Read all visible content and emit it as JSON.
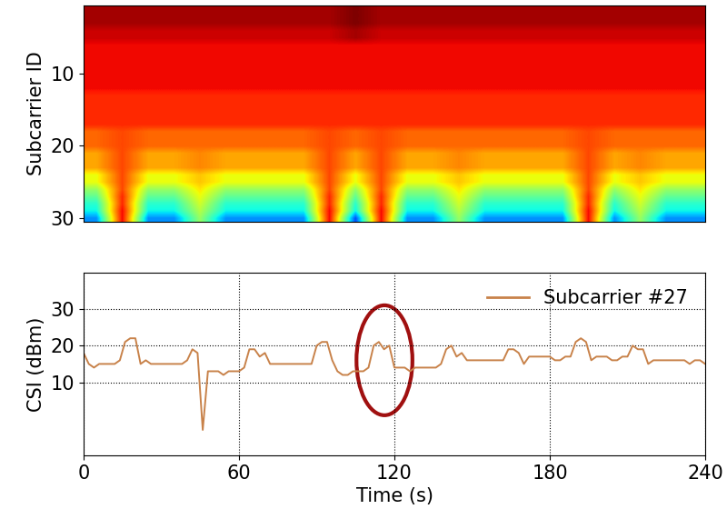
{
  "chart_data": [
    {
      "type": "heatmap",
      "y_label": "Subcarrier ID",
      "xlim": [
        0,
        240
      ],
      "ylim": [
        30.5,
        0.5
      ],
      "yticks": [
        10,
        20,
        30
      ],
      "tick_labels": "y",
      "color_range": [
        0,
        30
      ],
      "cells": [
        [
          29,
          29,
          29,
          29,
          29,
          29,
          29,
          29,
          29,
          29,
          30,
          29,
          29,
          29,
          29,
          29,
          29,
          29,
          29,
          29,
          29,
          29,
          29,
          29
        ],
        [
          29,
          29,
          29,
          29,
          29,
          29,
          29,
          29,
          29,
          29,
          30,
          29,
          29,
          29,
          29,
          29,
          29,
          29,
          29,
          29,
          29,
          29,
          29,
          29
        ],
        [
          29,
          29,
          29,
          29,
          29,
          29,
          29,
          29,
          29,
          29,
          30,
          29,
          29,
          29,
          29,
          29,
          29,
          29,
          29,
          29,
          29,
          29,
          29,
          29
        ],
        [
          28,
          28,
          28,
          28,
          28,
          28,
          28,
          28,
          28,
          28,
          29,
          28,
          28,
          28,
          28,
          28,
          28,
          28,
          28,
          28,
          28,
          28,
          28,
          28
        ],
        [
          28,
          28,
          28,
          28,
          28,
          28,
          28,
          28,
          28,
          28,
          29,
          28,
          28,
          28,
          28,
          28,
          28,
          28,
          28,
          28,
          28,
          28,
          28,
          28
        ],
        [
          27,
          27,
          27,
          27,
          27,
          27,
          27,
          27,
          27,
          27,
          27,
          27,
          27,
          27,
          27,
          27,
          27,
          27,
          27,
          27,
          27,
          27,
          27,
          27
        ],
        [
          27,
          27,
          27,
          27,
          27,
          27,
          27,
          27,
          27,
          27,
          27,
          27,
          27,
          27,
          27,
          27,
          27,
          27,
          27,
          27,
          27,
          27,
          27,
          27
        ],
        [
          27,
          27,
          27,
          27,
          27,
          27,
          27,
          27,
          27,
          27,
          27,
          27,
          27,
          27,
          27,
          27,
          27,
          27,
          27,
          27,
          27,
          27,
          27,
          27
        ],
        [
          27,
          27,
          27,
          27,
          27,
          27,
          27,
          27,
          27,
          27,
          27,
          27,
          27,
          27,
          27,
          27,
          27,
          27,
          27,
          27,
          27,
          27,
          27,
          27
        ],
        [
          27,
          27,
          27,
          27,
          27,
          27,
          27,
          27,
          27,
          27,
          27,
          27,
          27,
          27,
          27,
          27,
          27,
          27,
          27,
          27,
          27,
          27,
          27,
          27
        ],
        [
          27,
          27,
          27,
          27,
          27,
          27,
          27,
          27,
          27,
          27,
          27,
          27,
          27,
          27,
          27,
          27,
          27,
          27,
          27,
          27,
          27,
          27,
          27,
          27
        ],
        [
          27,
          27,
          27,
          27,
          27,
          27,
          27,
          27,
          27,
          27,
          27,
          27,
          27,
          27,
          27,
          27,
          27,
          27,
          27,
          27,
          27,
          27,
          27,
          27
        ],
        [
          26,
          26,
          26,
          26,
          26,
          26,
          26,
          26,
          26,
          26,
          26,
          26,
          26,
          26,
          26,
          26,
          26,
          26,
          26,
          26,
          26,
          26,
          26,
          26
        ],
        [
          26,
          26,
          26,
          26,
          26,
          26,
          26,
          26,
          26,
          26,
          26,
          26,
          26,
          26,
          26,
          26,
          26,
          26,
          26,
          26,
          26,
          26,
          26,
          26
        ],
        [
          26,
          26,
          26,
          26,
          26,
          26,
          26,
          26,
          26,
          26,
          26,
          26,
          26,
          26,
          26,
          26,
          26,
          26,
          26,
          26,
          26,
          26,
          26,
          26
        ],
        [
          26,
          26,
          26,
          26,
          26,
          26,
          26,
          26,
          26,
          26,
          26,
          26,
          26,
          26,
          26,
          26,
          26,
          26,
          26,
          26,
          26,
          26,
          26,
          26
        ],
        [
          26,
          26,
          26,
          26,
          26,
          26,
          26,
          26,
          26,
          26,
          26,
          26,
          26,
          26,
          26,
          26,
          26,
          26,
          26,
          26,
          26,
          26,
          26,
          26
        ],
        [
          24,
          25,
          24,
          24,
          24,
          24,
          24,
          24,
          24,
          25,
          24,
          25,
          24,
          24,
          24,
          24,
          24,
          24,
          24,
          25,
          24,
          24,
          24,
          24
        ],
        [
          24,
          25,
          24,
          24,
          24,
          24,
          24,
          24,
          24,
          25,
          24,
          25,
          24,
          24,
          24,
          24,
          24,
          24,
          24,
          25,
          24,
          24,
          24,
          24
        ],
        [
          24,
          25,
          24,
          24,
          24,
          24,
          24,
          24,
          24,
          25,
          24,
          25,
          24,
          24,
          24,
          24,
          24,
          24,
          24,
          25,
          24,
          24,
          24,
          24
        ],
        [
          22,
          25,
          22,
          22,
          23,
          22,
          22,
          22,
          22,
          25,
          22,
          25,
          22,
          22,
          23,
          22,
          22,
          22,
          22,
          25,
          22,
          23,
          22,
          22
        ],
        [
          22,
          25,
          22,
          22,
          23,
          22,
          22,
          22,
          22,
          25,
          22,
          25,
          22,
          22,
          23,
          22,
          22,
          22,
          22,
          25,
          22,
          23,
          22,
          22
        ],
        [
          22,
          25,
          22,
          22,
          23,
          22,
          22,
          22,
          22,
          25,
          22,
          25,
          22,
          22,
          23,
          22,
          22,
          22,
          22,
          25,
          22,
          23,
          22,
          22
        ],
        [
          19,
          25,
          19,
          19,
          21,
          19,
          19,
          19,
          19,
          25,
          19,
          25,
          19,
          19,
          21,
          19,
          19,
          19,
          19,
          25,
          19,
          21,
          19,
          19
        ],
        [
          19,
          25,
          19,
          19,
          21,
          19,
          19,
          19,
          19,
          25,
          19,
          25,
          19,
          19,
          21,
          19,
          19,
          19,
          19,
          25,
          19,
          21,
          19,
          19
        ],
        [
          16,
          25,
          16,
          16,
          20,
          16,
          16,
          16,
          16,
          25,
          16,
          25,
          16,
          16,
          20,
          16,
          16,
          16,
          16,
          25,
          16,
          20,
          16,
          16
        ],
        [
          14,
          26,
          14,
          14,
          19,
          14,
          14,
          14,
          14,
          26,
          14,
          26,
          14,
          14,
          19,
          14,
          14,
          14,
          14,
          26,
          14,
          19,
          14,
          14
        ],
        [
          12,
          26,
          12,
          12,
          18,
          12,
          12,
          12,
          12,
          26,
          12,
          26,
          12,
          12,
          18,
          12,
          12,
          12,
          12,
          26,
          12,
          18,
          12,
          12
        ],
        [
          11,
          27,
          11,
          11,
          17,
          11,
          11,
          11,
          11,
          27,
          11,
          27,
          11,
          11,
          17,
          11,
          11,
          11,
          11,
          27,
          11,
          17,
          11,
          11
        ],
        [
          8,
          27,
          8,
          8,
          16,
          8,
          8,
          8,
          8,
          27,
          6,
          27,
          8,
          8,
          16,
          8,
          8,
          8,
          8,
          27,
          8,
          16,
          8,
          8
        ]
      ]
    },
    {
      "type": "line",
      "x_label": "Time (s)",
      "y_label": "CSI (dBm)",
      "xlim": [
        0,
        240
      ],
      "xticks": [
        0,
        60,
        120,
        180,
        240
      ],
      "ylim": [
        -10,
        40
      ],
      "yticks": [
        10,
        20,
        30
      ],
      "grid": true,
      "legend": "upper right",
      "x": [
        0,
        2,
        4,
        6,
        8,
        10,
        12,
        14,
        16,
        18,
        20,
        22,
        24,
        26,
        28,
        30,
        32,
        34,
        36,
        38,
        40,
        42,
        44,
        46,
        48,
        50,
        52,
        54,
        56,
        58,
        60,
        62,
        64,
        66,
        68,
        70,
        72,
        74,
        76,
        78,
        80,
        82,
        84,
        86,
        88,
        90,
        92,
        94,
        96,
        98,
        100,
        102,
        104,
        106,
        108,
        110,
        112,
        114,
        116,
        118,
        120,
        122,
        124,
        126,
        128,
        130,
        132,
        134,
        136,
        138,
        140,
        142,
        144,
        146,
        148,
        150,
        152,
        154,
        156,
        158,
        160,
        162,
        164,
        166,
        168,
        170,
        172,
        174,
        176,
        178,
        180,
        182,
        184,
        186,
        188,
        190,
        192,
        194,
        196,
        198,
        200,
        202,
        204,
        206,
        208,
        210,
        212,
        214,
        216,
        218,
        220,
        222,
        224,
        226,
        228,
        230,
        232,
        234,
        236,
        238,
        240
      ],
      "series": [
        {
          "name": "Subcarrier #27",
          "color": "#c8824a",
          "values": [
            18,
            15,
            14,
            15,
            15,
            15,
            15,
            16,
            21,
            22,
            22,
            15,
            16,
            15,
            15,
            15,
            15,
            15,
            15,
            15,
            16,
            19,
            18,
            -3,
            13,
            13,
            13,
            12,
            13,
            13,
            13,
            14,
            19,
            19,
            17,
            18,
            15,
            15,
            15,
            15,
            15,
            15,
            15,
            15,
            15,
            20,
            21,
            21,
            16,
            13,
            12,
            12,
            13,
            13,
            13,
            14,
            20,
            21,
            19,
            20,
            14,
            14,
            14,
            13,
            14,
            14,
            14,
            14,
            14,
            15,
            19,
            20,
            17,
            18,
            16,
            16,
            16,
            16,
            16,
            16,
            16,
            16,
            19,
            19,
            18,
            15,
            17,
            17,
            17,
            17,
            17,
            16,
            16,
            17,
            17,
            21,
            22,
            21,
            16,
            17,
            17,
            17,
            16,
            16,
            17,
            17,
            20,
            19,
            19,
            15,
            16,
            16,
            16,
            16,
            16,
            16,
            16,
            15,
            16,
            16,
            15
          ]
        }
      ]
    }
  ]
}
